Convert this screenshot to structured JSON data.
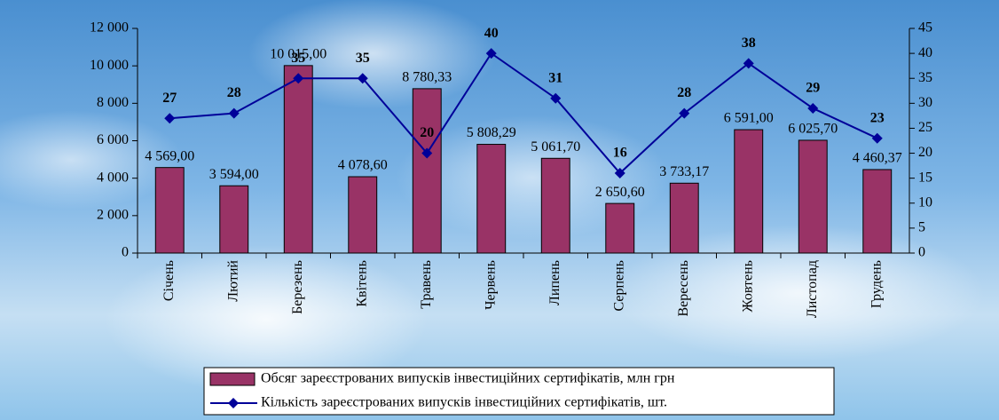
{
  "chart_data": {
    "type": "bar_line",
    "categories": [
      "Січень",
      "Лютий",
      "Березень",
      "Квітень",
      "Травень",
      "Червень",
      "Липень",
      "Серпень",
      "Вересень",
      "Жовтень",
      "Листопад",
      "Грудень"
    ],
    "series": [
      {
        "name": "Обсяг зареєстрованих випусків інвестиційних сертифікатів, млн грн",
        "color": "#993366",
        "type": "bar",
        "values": [
          4569,
          3594,
          10015,
          4078.6,
          8780.33,
          5808.29,
          5061.7,
          2650.6,
          3733.17,
          6591,
          6025.7,
          4460.37
        ],
        "value_labels": [
          "4 569,00",
          "3 594,00",
          "10 015,00",
          "4 078,60",
          "8 780,33",
          "5 808,29",
          "5 061,70",
          "2 650,60",
          "3 733,17",
          "6 591,00",
          "6 025,70",
          "4 460,37"
        ]
      },
      {
        "name": "Кількість зареєстрованих випусків інвестиційних сертифікатів, шт.",
        "color": "#000099",
        "type": "line",
        "axis": "y2",
        "values": [
          27,
          28,
          35,
          35,
          20,
          40,
          31,
          16,
          28,
          38,
          29,
          23
        ]
      }
    ],
    "ylim": [
      0,
      12000
    ],
    "yticks": [
      0,
      {
        "value": 2000,
        "label": "2 000"
      },
      {
        "value": 4000,
        "label": "4 000"
      },
      {
        "value": 6000,
        "label": "6 000"
      },
      {
        "value": 8000,
        "label": "8 000"
      },
      {
        "value": 10000,
        "label": "10 000"
      },
      {
        "value": 12000,
        "label": "12 000"
      }
    ],
    "y2lim": [
      0,
      45
    ],
    "y2ticks": [
      0,
      5,
      10,
      15,
      20,
      25,
      30,
      35,
      40,
      45
    ]
  }
}
